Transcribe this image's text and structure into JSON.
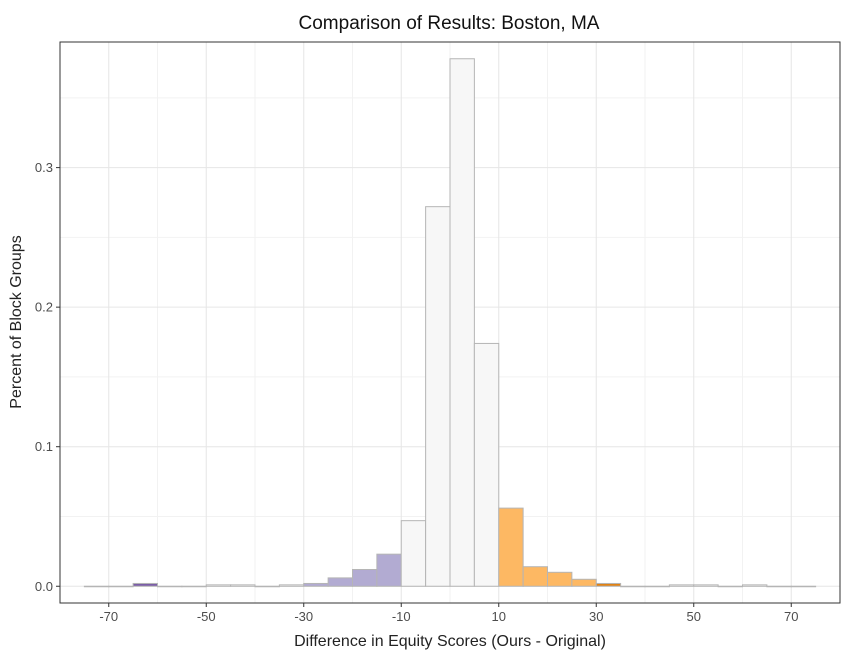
{
  "chart_data": {
    "type": "bar",
    "title": "Comparison of Results: Boston, MA",
    "xlabel": "Difference in Equity Scores (Ours - Original)",
    "ylabel": "Percent of Block Groups",
    "xlim": [
      -80,
      80
    ],
    "ylim": [
      -0.012,
      0.39
    ],
    "x_ticks": [
      -70,
      -50,
      -30,
      -10,
      10,
      30,
      50,
      70
    ],
    "x_tick_labels": [
      "-70",
      "-50",
      "-30",
      "-10",
      "10",
      "30",
      "50",
      "70"
    ],
    "y_ticks": [
      0.0,
      0.1,
      0.2,
      0.3
    ],
    "y_tick_labels": [
      "0.0",
      "0.1",
      "0.2",
      "0.3"
    ],
    "grid": true,
    "bin_width": 5,
    "bins": [
      {
        "x0": -75,
        "x1": -70,
        "value": 0.0,
        "color": "#f7f7f7"
      },
      {
        "x0": -70,
        "x1": -65,
        "value": 0.0,
        "color": "#f7f7f7"
      },
      {
        "x0": -65,
        "x1": -60,
        "value": 0.002,
        "color": "#7b5ea7"
      },
      {
        "x0": -60,
        "x1": -55,
        "value": 0.0,
        "color": "#f7f7f7"
      },
      {
        "x0": -55,
        "x1": -50,
        "value": 0.0,
        "color": "#f7f7f7"
      },
      {
        "x0": -50,
        "x1": -45,
        "value": 0.001,
        "color": "#f7f7f7"
      },
      {
        "x0": -45,
        "x1": -40,
        "value": 0.001,
        "color": "#f7f7f7"
      },
      {
        "x0": -40,
        "x1": -35,
        "value": 0.0,
        "color": "#f7f7f7"
      },
      {
        "x0": -35,
        "x1": -30,
        "value": 0.001,
        "color": "#f7f7f7"
      },
      {
        "x0": -30,
        "x1": -25,
        "value": 0.002,
        "color": "#b2abd2"
      },
      {
        "x0": -25,
        "x1": -20,
        "value": 0.006,
        "color": "#b2abd2"
      },
      {
        "x0": -20,
        "x1": -15,
        "value": 0.012,
        "color": "#b2abd2"
      },
      {
        "x0": -15,
        "x1": -10,
        "value": 0.023,
        "color": "#b2abd2"
      },
      {
        "x0": -10,
        "x1": -5,
        "value": 0.047,
        "color": "#f7f7f7"
      },
      {
        "x0": -5,
        "x1": 0,
        "value": 0.272,
        "color": "#f7f7f7"
      },
      {
        "x0": 0,
        "x1": 5,
        "value": 0.378,
        "color": "#f7f7f7"
      },
      {
        "x0": 5,
        "x1": 10,
        "value": 0.174,
        "color": "#f7f7f7"
      },
      {
        "x0": 10,
        "x1": 15,
        "value": 0.056,
        "color": "#fdb863"
      },
      {
        "x0": 15,
        "x1": 20,
        "value": 0.014,
        "color": "#fdb863"
      },
      {
        "x0": 20,
        "x1": 25,
        "value": 0.01,
        "color": "#fdb863"
      },
      {
        "x0": 25,
        "x1": 30,
        "value": 0.005,
        "color": "#fdb863"
      },
      {
        "x0": 30,
        "x1": 35,
        "value": 0.002,
        "color": "#e08214"
      },
      {
        "x0": 35,
        "x1": 40,
        "value": 0.0,
        "color": "#f7f7f7"
      },
      {
        "x0": 40,
        "x1": 45,
        "value": 0.0,
        "color": "#f7f7f7"
      },
      {
        "x0": 45,
        "x1": 50,
        "value": 0.001,
        "color": "#f7f7f7"
      },
      {
        "x0": 50,
        "x1": 55,
        "value": 0.001,
        "color": "#f7f7f7"
      },
      {
        "x0": 55,
        "x1": 60,
        "value": 0.0,
        "color": "#f7f7f7"
      },
      {
        "x0": 60,
        "x1": 65,
        "value": 0.001,
        "color": "#f7f7f7"
      },
      {
        "x0": 65,
        "x1": 70,
        "value": 0.0,
        "color": "#f7f7f7"
      },
      {
        "x0": 70,
        "x1": 75,
        "value": 0.0,
        "color": "#f7f7f7"
      }
    ]
  }
}
